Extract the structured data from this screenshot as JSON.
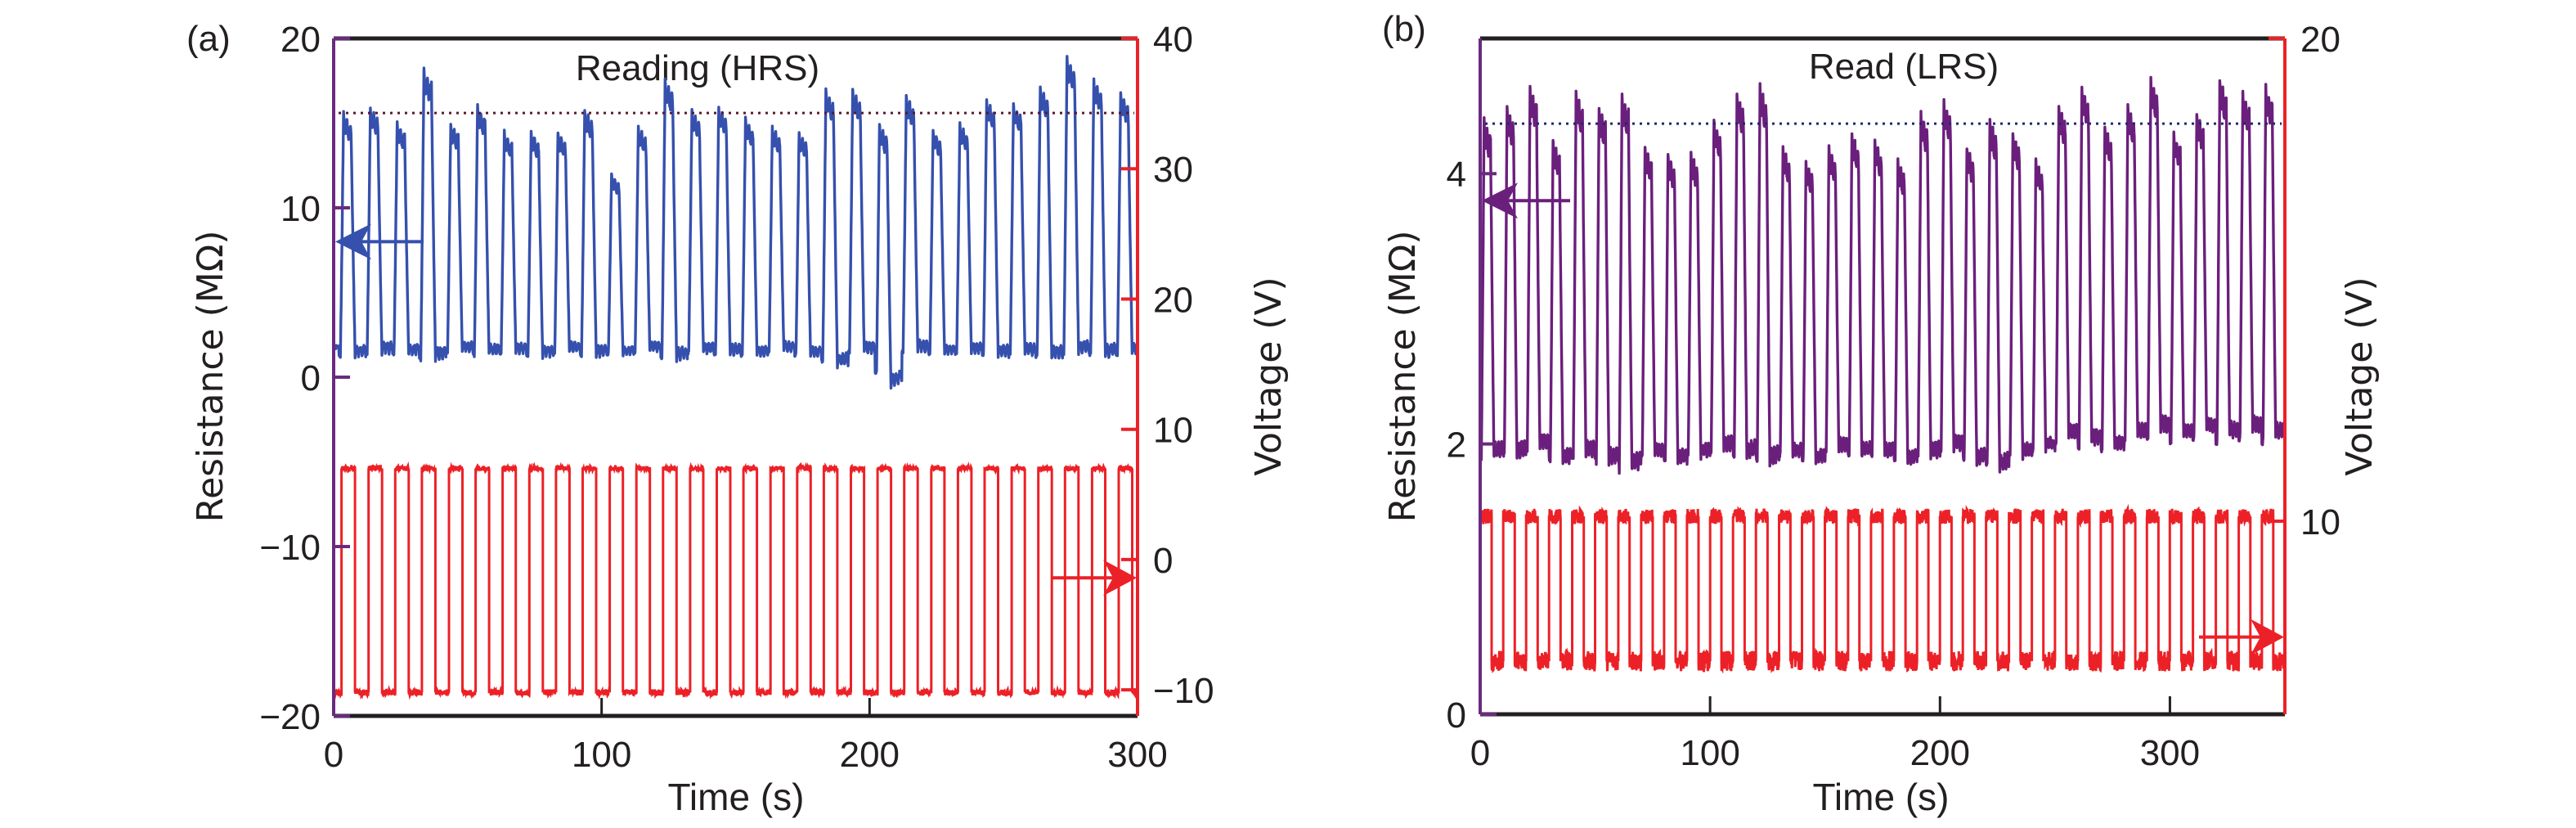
{
  "chart_data": [
    {
      "type": "line",
      "panel_label": "(a)",
      "title": "",
      "annotation": "Reading (HRS)",
      "xlabel": "Time (s)",
      "ylabel_left": "Resistance (MΩ)",
      "ylabel_right": "Voltage (V)",
      "xlim": [
        0,
        300
      ],
      "ylim_left": [
        -20,
        20
      ],
      "ylim_right": [
        -12,
        40
      ],
      "xticks": [
        "0",
        "100",
        "200",
        "300"
      ],
      "xtick_values": [
        0,
        100,
        200,
        300
      ],
      "yticks_left": [
        "20",
        "10",
        "0",
        "−10",
        "−20"
      ],
      "ytick_values_left": [
        20,
        10,
        0,
        -10,
        -20
      ],
      "yticks_right": [
        "40",
        "30",
        "20",
        "10",
        "0",
        "−10"
      ],
      "ytick_values_right": [
        40,
        30,
        20,
        10,
        0,
        -10
      ],
      "grid": false,
      "reference_line": {
        "axis": "left",
        "value": 15.6,
        "style": "dotted",
        "color": "#5b1a2c"
      },
      "left_arrow": {
        "y": 8.0,
        "points_to": "left-axis",
        "color": "#3550ad"
      },
      "right_arrow": {
        "y": -1.4,
        "points_to": "right-axis",
        "color": "#ec2127"
      },
      "series": [
        {
          "name": "Resistance",
          "axis": "left",
          "color": "#3550ad",
          "period_s": 10,
          "cycle_start_s": 2,
          "low_level": 1.5,
          "cycle_peaks": [
            15.6,
            16.0,
            15.0,
            18.2,
            15.0,
            16.0,
            14.5,
            14.5,
            14.5,
            15.8,
            12.0,
            14.8,
            17.6,
            15.8,
            16.0,
            15.3,
            14.8,
            14.5,
            17.0,
            17.0,
            15.0,
            16.6,
            14.6,
            15.0,
            16.4,
            16.2,
            17.2,
            18.9,
            17.6,
            16.8
          ],
          "cycle_lows": [
            1.2,
            1.4,
            1.3,
            1.0,
            1.5,
            1.3,
            1.4,
            1.2,
            1.5,
            1.2,
            1.3,
            1.5,
            1.0,
            1.4,
            1.3,
            1.2,
            1.5,
            1.2,
            0.6,
            1.4,
            -0.6,
            1.5,
            1.3,
            1.4,
            1.2,
            1.3,
            1.1,
            1.4,
            1.2,
            1.3
          ]
        },
        {
          "name": "Voltage",
          "axis": "right",
          "color": "#ec2127",
          "waveform": "square",
          "period_s": 10,
          "duty": 0.5,
          "first_rise_s": 3,
          "high_V": 7.0,
          "low_V": -10.2,
          "noise_V": 0.4
        }
      ]
    },
    {
      "type": "line",
      "panel_label": "(b)",
      "title": "",
      "annotation": "Read (LRS)",
      "xlabel": "Time (s)",
      "ylabel_left": "Resistance (MΩ)",
      "ylabel_right": "Voltage (V)",
      "xlim": [
        0,
        350
      ],
      "ylim_left": [
        0,
        5
      ],
      "ylim_right": [
        6,
        20
      ],
      "xticks": [
        "0",
        "100",
        "200",
        "300"
      ],
      "xtick_values": [
        0,
        100,
        200,
        300
      ],
      "yticks_left": [
        "4",
        "2",
        "0"
      ],
      "ytick_values_left": [
        4,
        2,
        0
      ],
      "yticks_right": [
        "20",
        "10"
      ],
      "ytick_values_right": [
        20,
        10
      ],
      "grid": false,
      "reference_line": {
        "axis": "left",
        "value": 4.37,
        "style": "dotted",
        "color": "#1f2a6b"
      },
      "left_arrow": {
        "y": 3.8,
        "points_to": "left-axis",
        "color": "#6b1f7c"
      },
      "right_arrow": {
        "y": 7.6,
        "points_to": "right-axis",
        "color": "#ec2127"
      },
      "series": [
        {
          "name": "Resistance",
          "axis": "left",
          "color": "#6b1f7c",
          "period_s": 10,
          "cycle_start_s": 0,
          "low_level": 1.95,
          "cycle_peaks": [
            4.4,
            4.5,
            4.65,
            4.25,
            4.6,
            4.5,
            4.6,
            4.2,
            4.15,
            4.15,
            4.4,
            4.6,
            4.65,
            4.2,
            4.1,
            4.2,
            4.3,
            4.25,
            4.1,
            4.45,
            4.55,
            4.2,
            4.4,
            4.3,
            4.1,
            4.5,
            4.65,
            4.35,
            4.5,
            4.7,
            4.3,
            4.45,
            4.7,
            4.6,
            4.65
          ],
          "cycle_lows": [
            1.9,
            1.9,
            1.95,
            1.85,
            1.9,
            1.85,
            1.8,
            1.9,
            1.85,
            1.9,
            1.95,
            1.9,
            1.85,
            1.9,
            1.85,
            1.95,
            1.9,
            1.9,
            1.85,
            1.9,
            1.95,
            1.85,
            1.8,
            1.9,
            1.95,
            2.05,
            2.0,
            1.95,
            2.05,
            2.1,
            2.05,
            2.1,
            2.05,
            2.1,
            2.05
          ]
        },
        {
          "name": "Voltage",
          "axis": "right",
          "color": "#ec2127",
          "waveform": "square",
          "period_s": 10,
          "duty": 0.5,
          "first_rise_s": 0,
          "high_V": 10.1,
          "low_V": 7.1,
          "noise_V": 0.35
        }
      ]
    }
  ]
}
